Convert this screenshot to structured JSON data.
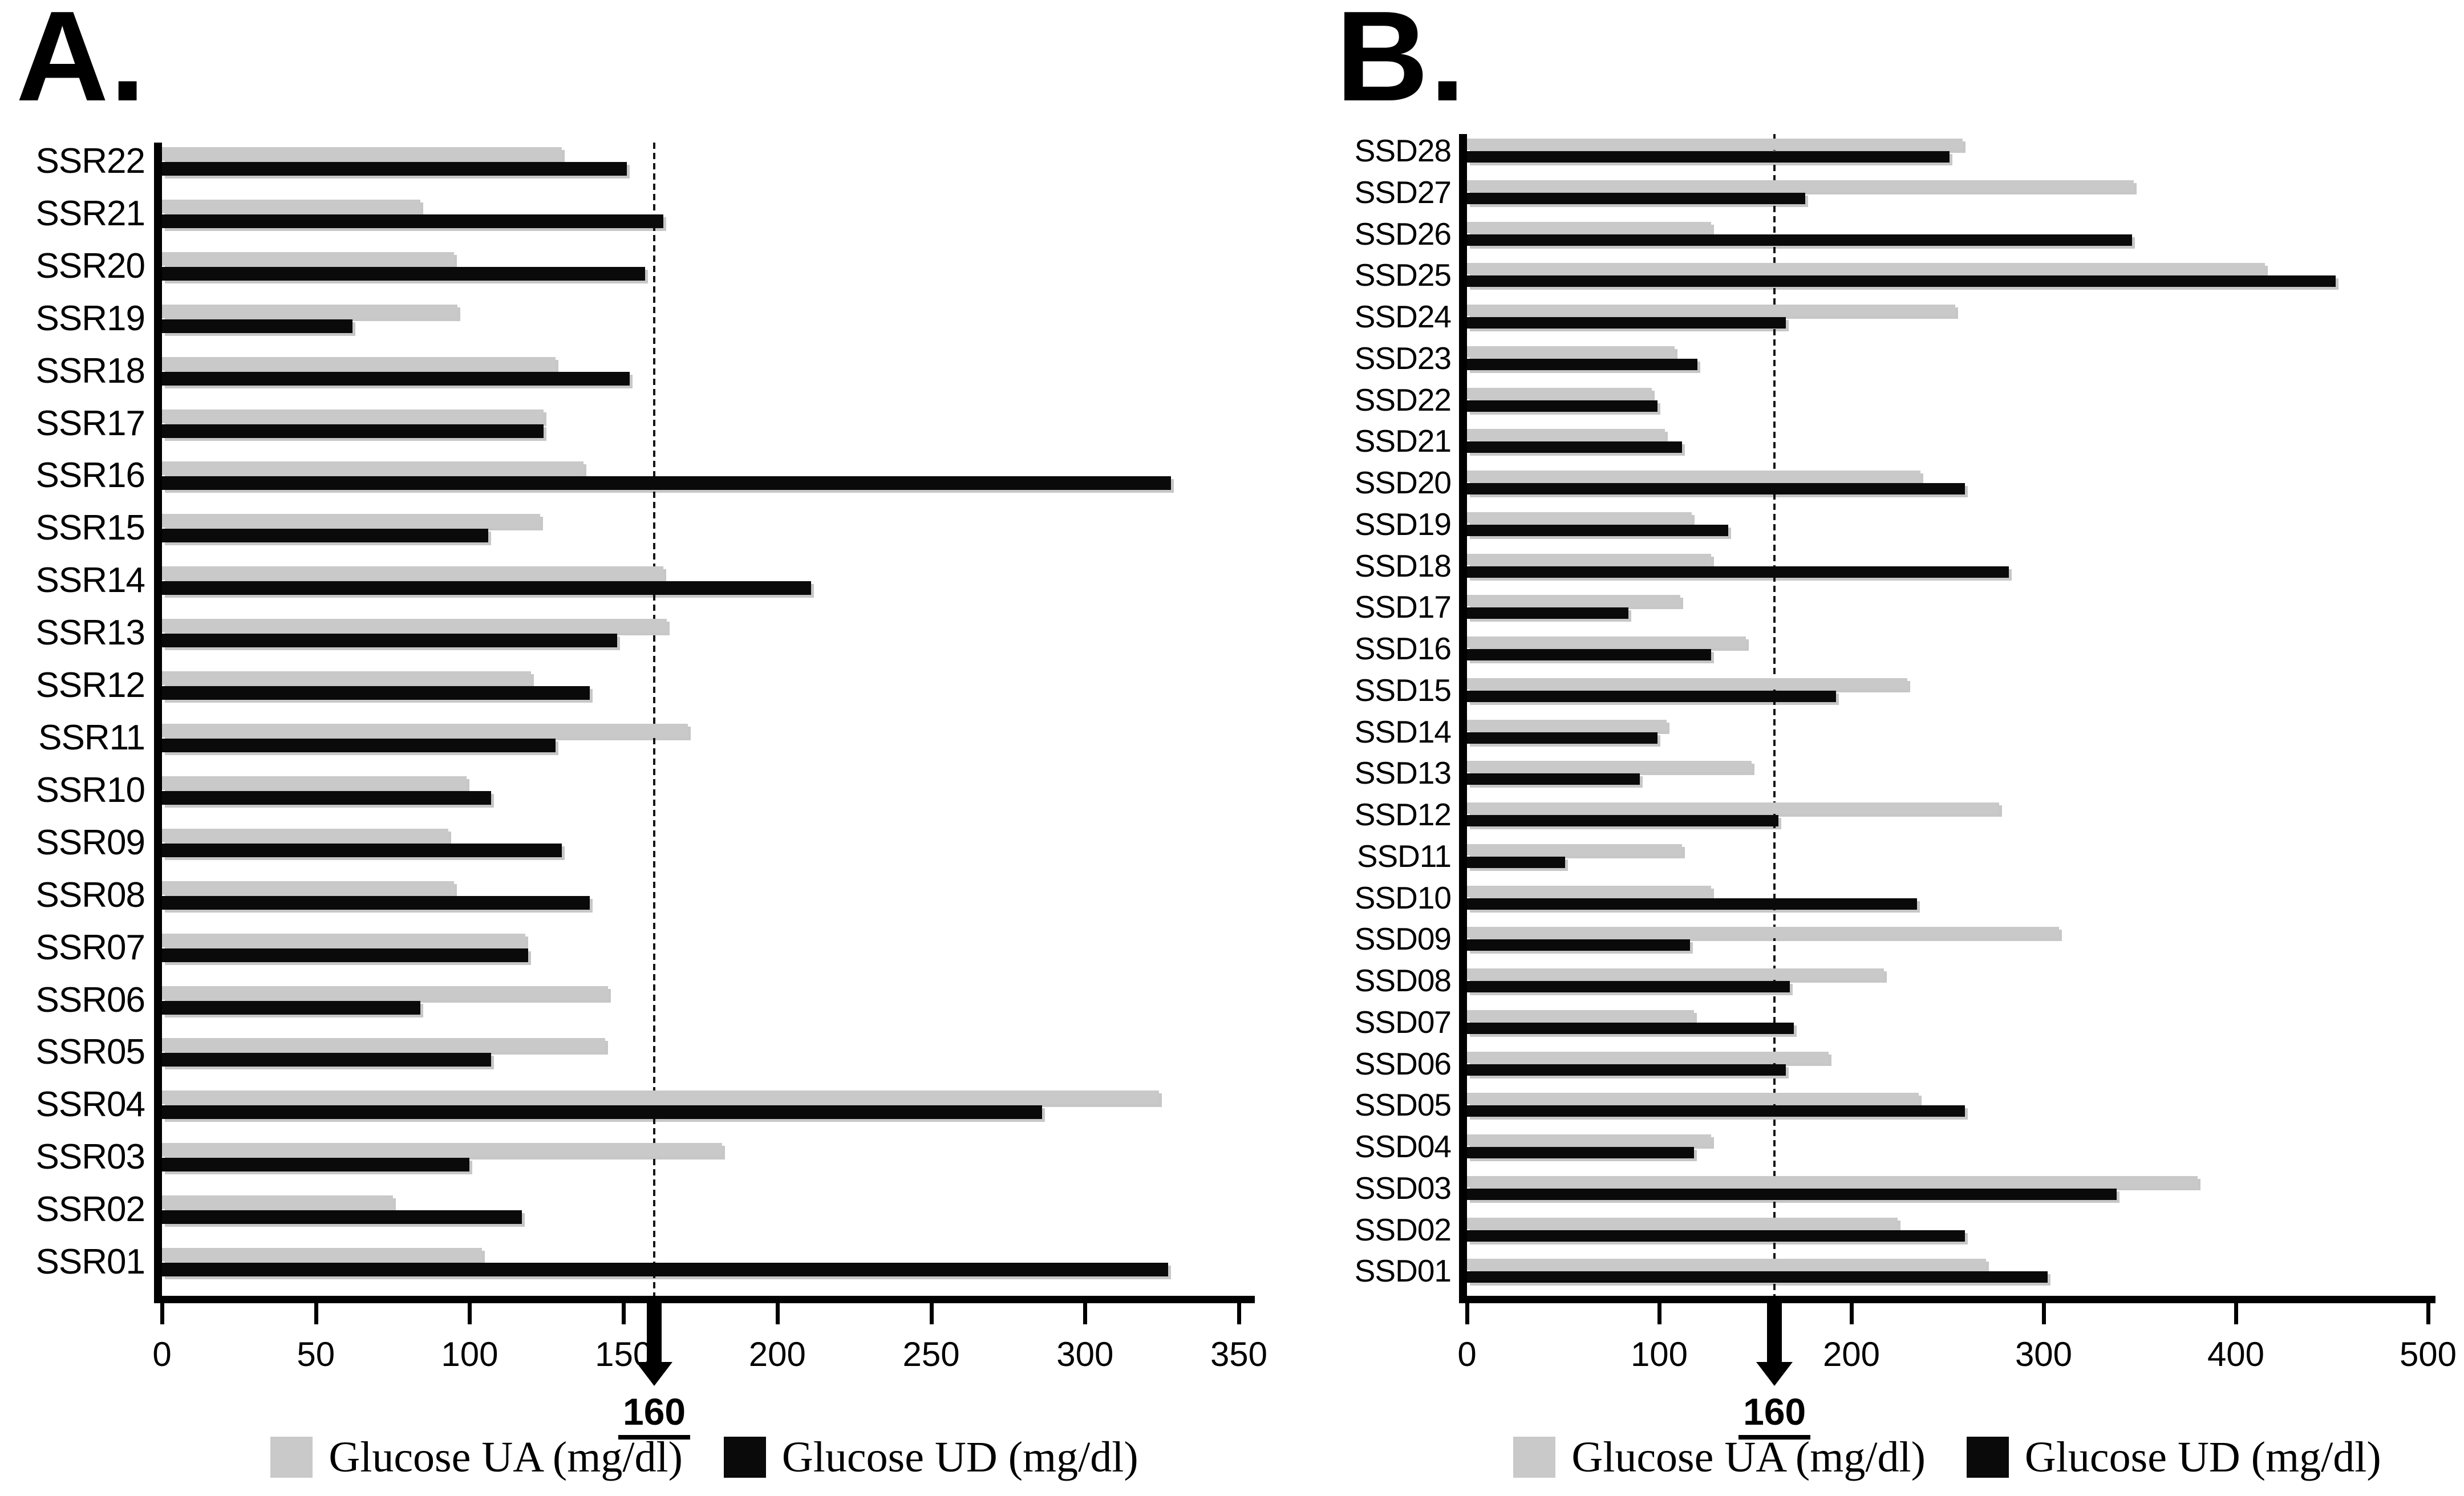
{
  "figure": {
    "background": "#ffffff"
  },
  "threshold_color": "#000000",
  "chart_data": [
    {
      "id": "panel-a",
      "type": "bar",
      "orientation": "horizontal",
      "title": "A.",
      "xlabel": "",
      "ylabel": "",
      "xlim": [
        0,
        350
      ],
      "xticks": [
        0,
        50,
        100,
        150,
        200,
        250,
        300,
        350
      ],
      "grid": false,
      "legend_position": "bottom",
      "threshold": {
        "value": 160,
        "label": "160"
      },
      "categories": [
        "SSR22",
        "SSR21",
        "SSR20",
        "SSR19",
        "SSR18",
        "SSR17",
        "SSR16",
        "SSR15",
        "SSR14",
        "SSR13",
        "SSR12",
        "SSR11",
        "SSR10",
        "SSR09",
        "SSR08",
        "SSR07",
        "SSR06",
        "SSR05",
        "SSR04",
        "SSR03",
        "SSR02",
        "SSR01"
      ],
      "series": [
        {
          "name": "Glucose UA (mg/dl)",
          "color": "#c9c9c9",
          "values": [
            130,
            84,
            95,
            96,
            128,
            124,
            137,
            123,
            163,
            164,
            120,
            171,
            99,
            93,
            95,
            118,
            145,
            144,
            324,
            182,
            75,
            104
          ]
        },
        {
          "name": "Glucose UD (mg/dl)",
          "color": "#0a0a0a",
          "values": [
            151,
            163,
            157,
            62,
            152,
            124,
            328,
            106,
            211,
            148,
            139,
            128,
            107,
            130,
            139,
            119,
            84,
            107,
            286,
            100,
            117,
            327
          ]
        }
      ]
    },
    {
      "id": "panel-b",
      "type": "bar",
      "orientation": "horizontal",
      "title": "B.",
      "xlabel": "",
      "ylabel": "",
      "xlim": [
        0,
        500
      ],
      "xticks": [
        0,
        100,
        200,
        300,
        400,
        500
      ],
      "grid": false,
      "legend_position": "bottom",
      "threshold": {
        "value": 160,
        "label": "160"
      },
      "categories": [
        "SSD28",
        "SSD27",
        "SSD26",
        "SSD25",
        "SSD24",
        "SSD23",
        "SSD22",
        "SSD21",
        "SSD20",
        "SSD19",
        "SSD18",
        "SSD17",
        "SSD16",
        "SSD15",
        "SSD14",
        "SSD13",
        "SSD12",
        "SSD11",
        "SSD10",
        "SSD09",
        "SSD08",
        "SSD07",
        "SSD06",
        "SSD05",
        "SSD04",
        "SSD03",
        "SSD02",
        "SSD01"
      ],
      "series": [
        {
          "name": "Glucose UA (mg/dl)",
          "color": "#c9c9c9",
          "values": [
            258,
            347,
            127,
            415,
            254,
            108,
            96,
            103,
            236,
            117,
            127,
            111,
            145,
            229,
            104,
            148,
            277,
            112,
            127,
            308,
            217,
            118,
            188,
            235,
            127,
            380,
            224,
            270
          ]
        },
        {
          "name": "Glucose UD (mg/dl)",
          "color": "#0a0a0a",
          "values": [
            251,
            176,
            346,
            452,
            166,
            120,
            99,
            112,
            259,
            136,
            282,
            84,
            127,
            192,
            99,
            90,
            162,
            51,
            234,
            116,
            168,
            170,
            166,
            259,
            118,
            338,
            259,
            302
          ]
        }
      ]
    }
  ]
}
